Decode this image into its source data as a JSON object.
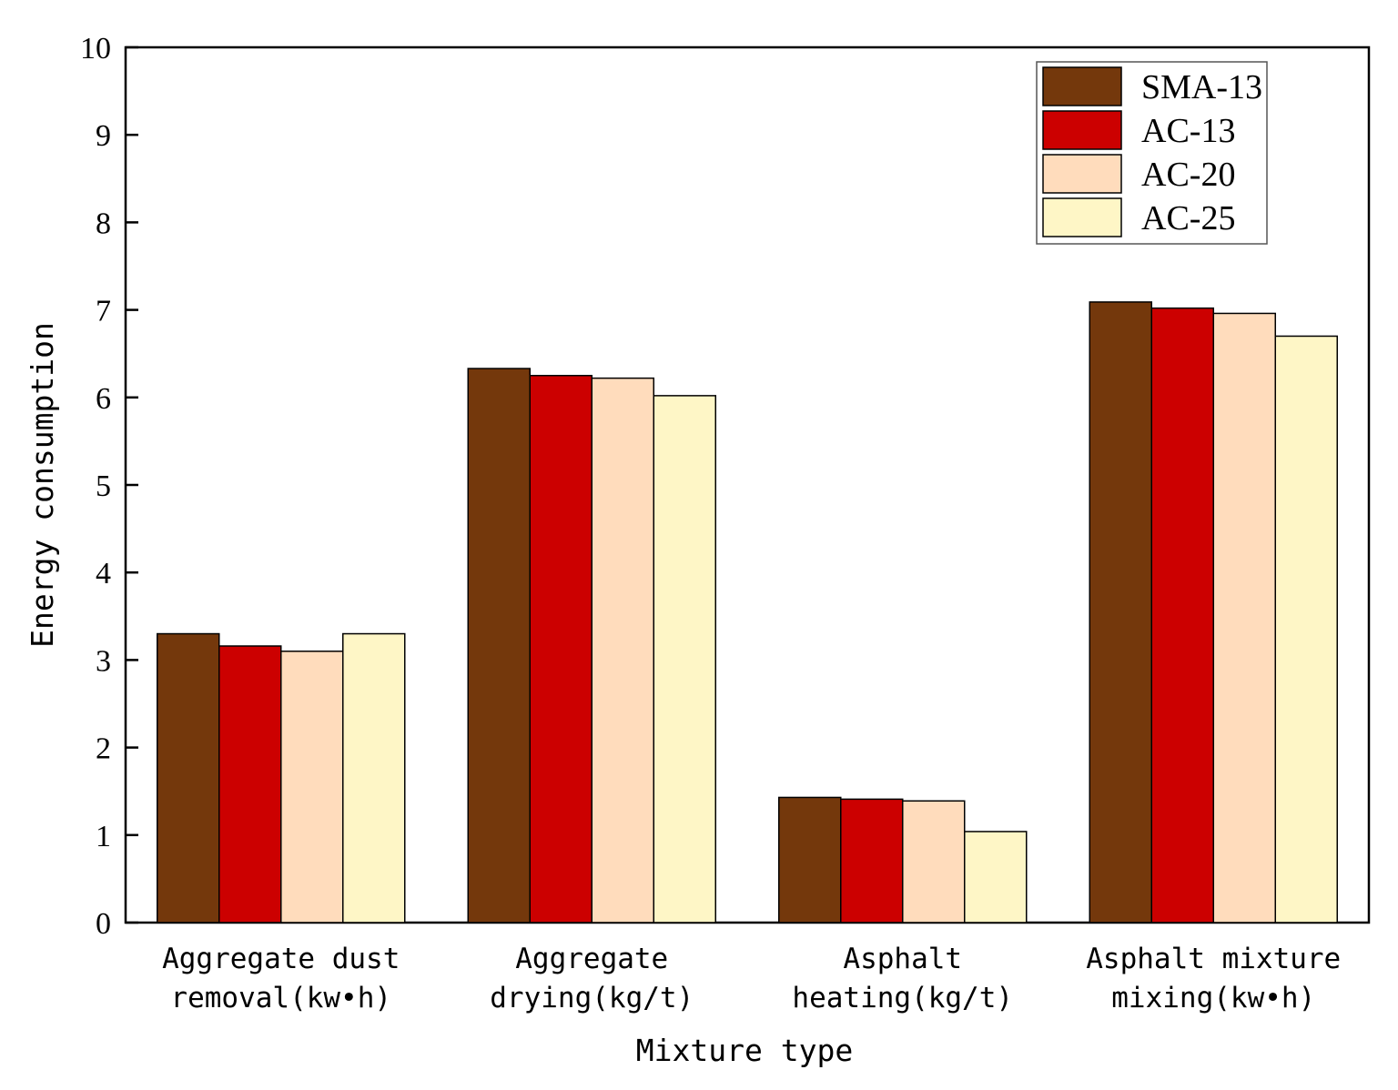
{
  "chart_data": {
    "type": "bar",
    "title": "",
    "xlabel": "Mixture type",
    "ylabel": "Energy consumption",
    "ylim": [
      0,
      10
    ],
    "yticks": [
      0,
      1,
      2,
      3,
      4,
      5,
      6,
      7,
      8,
      9,
      10
    ],
    "grid": false,
    "legend_position": "top-right",
    "categories": [
      [
        "Aggregate dust",
        "removal(kw•h)"
      ],
      [
        "Aggregate",
        "drying(kg/t)"
      ],
      [
        "Asphalt",
        "heating(kg/t)"
      ],
      [
        "Asphalt mixture",
        "mixing(kw•h)"
      ]
    ],
    "series": [
      {
        "name": "SMA-13",
        "color": "#74380c",
        "values": [
          3.3,
          6.33,
          1.43,
          7.09
        ]
      },
      {
        "name": "AC-13",
        "color": "#cc0000",
        "values": [
          3.16,
          6.25,
          1.41,
          7.02
        ]
      },
      {
        "name": "AC-20",
        "color": "#ffdcbc",
        "values": [
          3.1,
          6.22,
          1.39,
          6.96
        ]
      },
      {
        "name": "AC-25",
        "color": "#fef6c6",
        "values": [
          3.3,
          6.02,
          1.04,
          6.7
        ]
      }
    ]
  }
}
